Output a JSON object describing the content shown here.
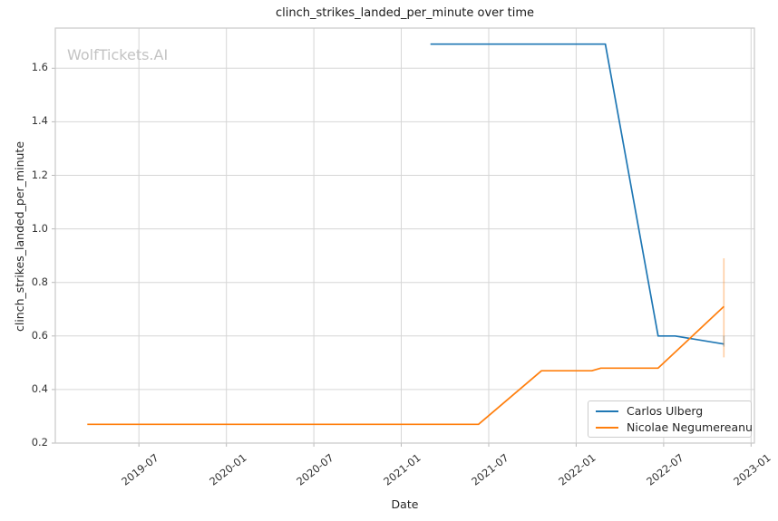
{
  "watermark": "WolfTickets.AI",
  "chart_data": {
    "type": "line",
    "title": "clinch_strikes_landed_per_minute over time",
    "xlabel": "Date",
    "ylabel": "clinch_strikes_landed_per_minute",
    "x_ticks": [
      "2019-07",
      "2020-01",
      "2020-07",
      "2021-01",
      "2021-07",
      "2022-01",
      "2022-07",
      "2023-01"
    ],
    "y_ticks": [
      0.2,
      0.4,
      0.6,
      0.8,
      1.0,
      1.2,
      1.4,
      1.6
    ],
    "x_range": [
      "2019-01-09",
      "2023-01-08"
    ],
    "ylim": [
      0.2,
      1.75
    ],
    "grid": true,
    "grid_color": "#d6d6d6",
    "spine_color": "#c9c9c9",
    "legend_position": "lower right",
    "series": [
      {
        "name": "Carlos Ulberg",
        "color": "#1f77b4",
        "points": [
          {
            "date": "2021-03-01",
            "value": 1.69
          },
          {
            "date": "2022-03-01",
            "value": 1.69
          },
          {
            "date": "2022-06-20",
            "value": 0.6
          },
          {
            "date": "2022-07-25",
            "value": 0.6
          },
          {
            "date": "2022-11-05",
            "value": 0.57
          }
        ],
        "final_error_bar": {
          "low": 0.56,
          "high": 0.6
        }
      },
      {
        "name": "Nicolae Negumereanu",
        "color": "#ff7f0e",
        "points": [
          {
            "date": "2019-03-15",
            "value": 0.27
          },
          {
            "date": "2021-06-10",
            "value": 0.27
          },
          {
            "date": "2021-10-20",
            "value": 0.47
          },
          {
            "date": "2022-02-03",
            "value": 0.47
          },
          {
            "date": "2022-02-22",
            "value": 0.48
          },
          {
            "date": "2022-06-20",
            "value": 0.48
          },
          {
            "date": "2022-11-05",
            "value": 0.71
          }
        ],
        "final_error_bar": {
          "low": 0.52,
          "high": 0.89
        }
      }
    ]
  }
}
